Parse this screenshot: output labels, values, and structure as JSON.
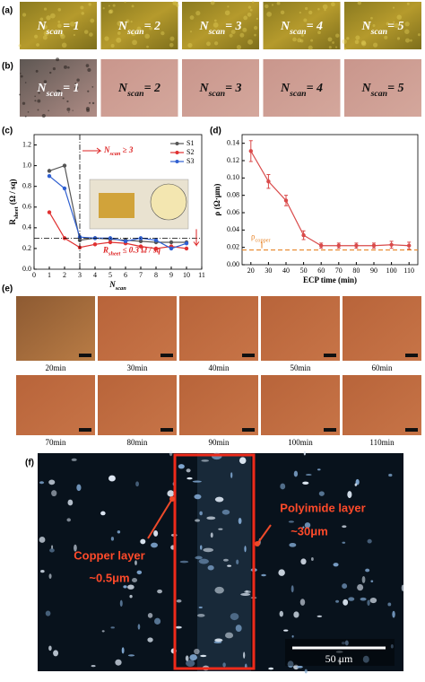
{
  "panel_labels": [
    "(a)",
    "(b)",
    "(c)",
    "(d)",
    "(e)",
    "(f)"
  ],
  "scan_label": {
    "symbol": "N",
    "subscript": "scan",
    "relations": [
      "= 1",
      "= 2",
      "= 3",
      "= 4",
      "= 5"
    ]
  },
  "chart_data": [
    {
      "type": "line",
      "x": [
        1,
        2,
        3,
        4,
        5,
        6,
        7,
        8,
        9,
        10
      ],
      "series": [
        {
          "name": "S1",
          "color": "#555555",
          "values": [
            0.95,
            1.0,
            0.28,
            0.3,
            0.29,
            0.28,
            0.27,
            0.26,
            0.26,
            0.26
          ]
        },
        {
          "name": "S2",
          "color": "#e03030",
          "values": [
            0.55,
            0.3,
            0.21,
            0.24,
            0.26,
            0.25,
            0.22,
            0.2,
            0.22,
            0.2
          ]
        },
        {
          "name": "S3",
          "color": "#2f5fd0",
          "values": [
            0.9,
            0.78,
            0.31,
            0.3,
            0.3,
            0.27,
            0.3,
            0.28,
            0.2,
            0.25
          ]
        }
      ],
      "xlim": [
        0,
        11
      ],
      "xticks": [
        0,
        1,
        2,
        3,
        4,
        5,
        6,
        7,
        8,
        9,
        10,
        11
      ],
      "ylim": [
        0,
        1.3
      ],
      "yticks": [
        {
          "value": 0,
          "label": "0.0"
        },
        0.2,
        0.4,
        0.6,
        0.8,
        {
          "value": 1,
          "label": "1.0"
        },
        1.2
      ],
      "x_label": {
        "symbol": "N",
        "subscript": "scan"
      },
      "y_label": {
        "symbol": "R",
        "subscript": "sheet",
        "unit": " (Ω / sq)"
      },
      "reference_lines": {
        "x": 3,
        "y": 0.3
      },
      "annotations": [
        {
          "symbol": "N",
          "subscript": "scan",
          "text": " ≥ 3"
        },
        {
          "symbol": "R",
          "subscript": "sheet",
          "text": " ≤ 0.3 Ω / sq"
        }
      ]
    },
    {
      "type": "line",
      "x": [
        20,
        30,
        40,
        50,
        60,
        70,
        80,
        90,
        100,
        110
      ],
      "values": [
        0.131,
        0.096,
        0.074,
        0.034,
        0.022,
        0.022,
        0.022,
        0.022,
        0.023,
        0.022
      ],
      "errors": [
        0.012,
        0.008,
        0.006,
        0.005,
        0.003,
        0.003,
        0.003,
        0.003,
        0.004,
        0.004
      ],
      "color": "#d94a4a",
      "xlim": [
        15,
        115
      ],
      "xticks": [
        20,
        30,
        40,
        50,
        60,
        70,
        80,
        90,
        100,
        110
      ],
      "ylim": [
        0,
        0.15
      ],
      "yticks": [
        {
          "value": 0,
          "label": "0.00"
        },
        0.02,
        0.04,
        0.06,
        0.08,
        {
          "value": 0.1,
          "label": "0.10"
        },
        0.12,
        0.14
      ],
      "x_label": "ECP time (min)",
      "y_label": "ρ (Ω·μm)",
      "reference": {
        "y": 0.017,
        "symbol": "ρ",
        "subscript": "copper",
        "color": "#e8862a"
      }
    }
  ],
  "panel_e": {
    "times": [
      "20min",
      "30min",
      "40min",
      "50min",
      "60min",
      "70min",
      "80min",
      "90min",
      "100min",
      "110min"
    ]
  },
  "panel_f": {
    "polyimide_label": "Polyimide layer",
    "polyimide_thickness": "~30μm",
    "copper_label": "Copper layer",
    "copper_thickness": "~0.5μm",
    "scale_bar": "50 μm"
  }
}
